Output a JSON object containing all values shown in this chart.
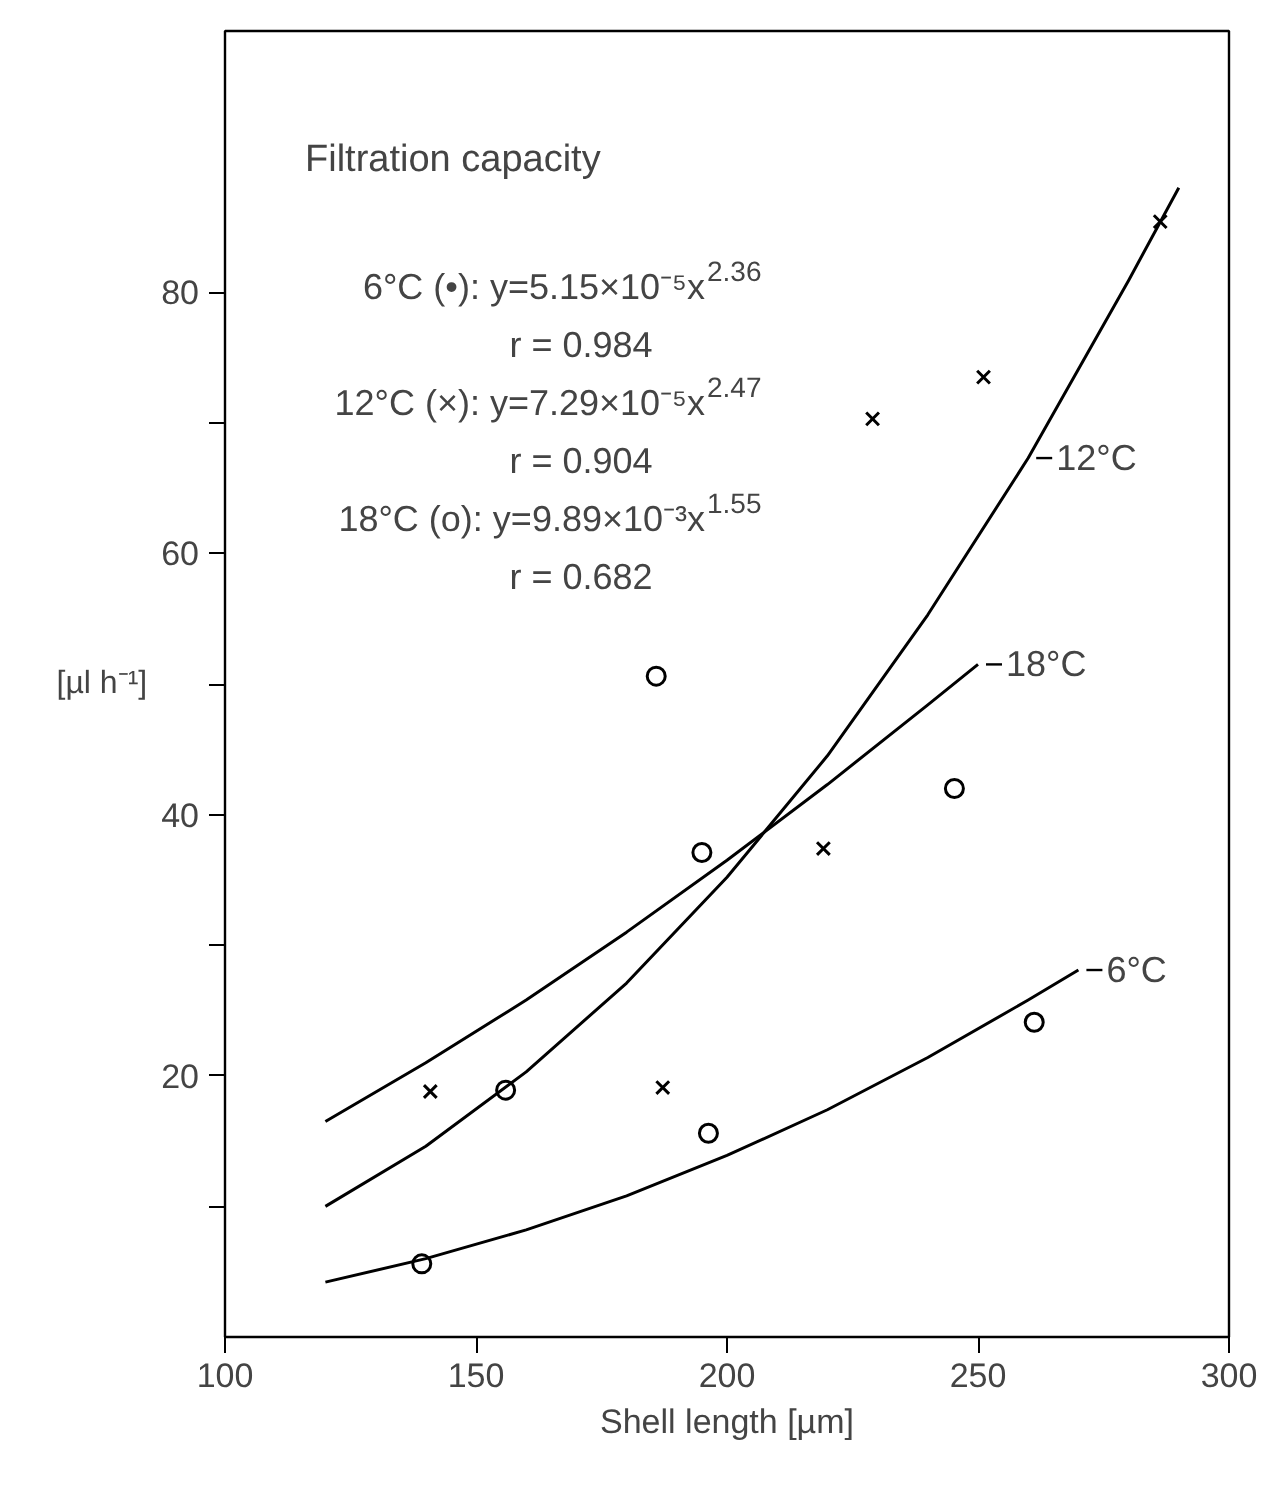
{
  "chart_data": {
    "type": "scatter",
    "title": "Filtration capacity",
    "xlabel": "Shell length [µm]",
    "ylabel": "[µl h⁻¹]",
    "annotations": [
      "6°C (•): y=5.15×10⁻⁵x$^{2.36}$",
      "r = 0.984",
      "12°C (×): y=7.29×10⁻⁵x$^{2.47}$",
      "r = 0.904",
      "18°C (o): y=9.89×10⁻³x$^{1.55}$",
      "r = 0.682"
    ],
    "series": [
      {
        "marker": "circle",
        "color": "#000000",
        "x": [
          139.2,
          196.3,
          261.2
        ],
        "values": [
          5.6,
          15.6,
          24.1
        ]
      },
      {
        "marker": "cross",
        "color": "#000000",
        "x": [
          140.9,
          187.2,
          219.2,
          229.0,
          251.1,
          286.3
        ],
        "values": [
          18.8,
          19.1,
          37.4,
          70.3,
          73.5,
          85.4
        ]
      },
      {
        "marker": "circle",
        "color": "#000000",
        "x": [
          155.9,
          185.9,
          195.0,
          245.3
        ],
        "values": [
          18.9,
          50.6,
          37.1,
          42.0
        ]
      },
      {
        "type": "line",
        "name": "6°C",
        "color": "#000000",
        "x": [
          120,
          140,
          160,
          180,
          200,
          220,
          240,
          260,
          270
        ],
        "values": [
          4.2,
          6.0,
          8.2,
          10.8,
          13.9,
          17.4,
          21.4,
          25.8,
          28.1
        ]
      },
      {
        "type": "line",
        "name": "12°C",
        "color": "#000000",
        "x": [
          120,
          140,
          160,
          180,
          200,
          220,
          240,
          260,
          280,
          290
        ],
        "values": [
          10.0,
          14.6,
          20.3,
          27.1,
          35.2,
          44.5,
          55.3,
          67.3,
          80.9,
          88.0
        ]
      },
      {
        "type": "line",
        "name": "18°C",
        "color": "#000000",
        "x": [
          120,
          140,
          160,
          180,
          200,
          220,
          240,
          250
        ],
        "values": [
          16.5,
          21.0,
          25.8,
          31.0,
          36.5,
          42.3,
          48.4,
          51.5
        ]
      }
    ],
    "xlim": [
      100,
      300
    ],
    "xticks": [
      100,
      150,
      200,
      250,
      300
    ],
    "ylim": [
      0,
      100
    ],
    "yticks": [
      {
        "value": 10,
        "label": null
      },
      20,
      {
        "value": 30,
        "label": null
      },
      40,
      {
        "value": 50,
        "label": null
      },
      60,
      {
        "value": 70,
        "label": null
      },
      80
    ],
    "grid": false,
    "legend": "right",
    "marker": "none",
    "line_style": "solid"
  }
}
